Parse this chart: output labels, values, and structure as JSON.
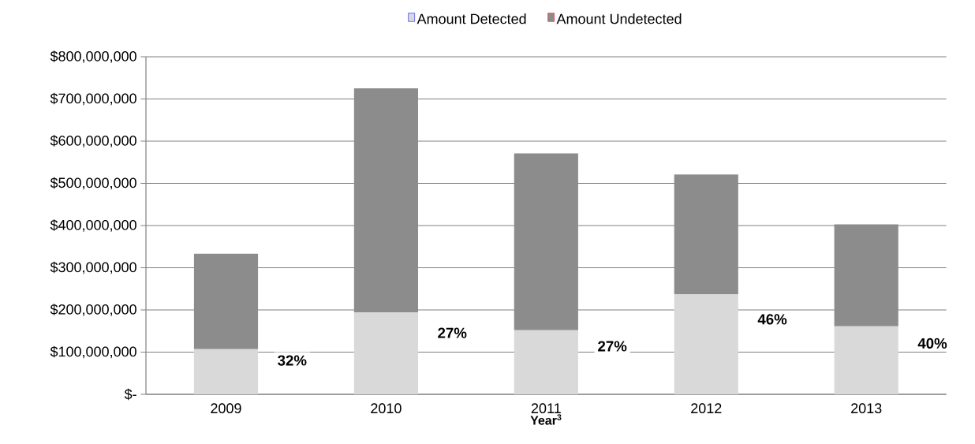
{
  "chart_data": {
    "type": "bar",
    "stacked": true,
    "categories": [
      "2009",
      "2010",
      "2011",
      "2012",
      "2013"
    ],
    "series": [
      {
        "name": "Amount Detected",
        "color": "#d9d9d9",
        "values": [
          107000000,
          194000000,
          152000000,
          237000000,
          161000000
        ]
      },
      {
        "name": "Amount Undetected",
        "color": "#8c8c8c",
        "values": [
          226000000,
          531000000,
          419000000,
          284000000,
          242000000
        ]
      }
    ],
    "xlabel": "Year$^{3}$",
    "ylim": [
      0,
      800000000
    ],
    "yticks": [
      {
        "value": 0,
        "label": "$-"
      },
      {
        "value": 100000000,
        "label": "$100,000,000"
      },
      {
        "value": 200000000,
        "label": "$200,000,000"
      },
      {
        "value": 300000000,
        "label": "$300,000,000"
      },
      {
        "value": 400000000,
        "label": "$400,000,000"
      },
      {
        "value": 500000000,
        "label": "$500,000,000"
      },
      {
        "value": 600000000,
        "label": "$600,000,000"
      },
      {
        "value": 700000000,
        "label": "$700,000,000"
      },
      {
        "value": 800000000,
        "label": "$800,000,000"
      }
    ],
    "grid": "y",
    "legend": "top",
    "annotations": [
      "32%",
      "27%",
      "27%",
      "46%",
      "40%"
    ]
  }
}
